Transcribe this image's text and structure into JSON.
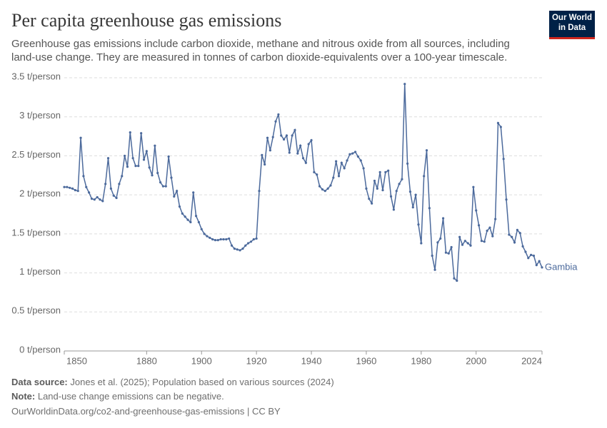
{
  "chart_data": {
    "type": "line",
    "title": "Per capita greenhouse gas emissions",
    "subtitle": "Greenhouse gas emissions include carbon dioxide, methane and nitrous oxide from all sources, including land-use change. They are measured in tonnes of carbon dioxide-equivalents over a 100-year timescale.",
    "logo": "Our World in Data",
    "x": [
      1850,
      1851,
      1852,
      1853,
      1854,
      1855,
      1856,
      1857,
      1858,
      1859,
      1860,
      1861,
      1862,
      1863,
      1864,
      1865,
      1866,
      1867,
      1868,
      1869,
      1870,
      1871,
      1872,
      1873,
      1874,
      1875,
      1876,
      1877,
      1878,
      1879,
      1880,
      1881,
      1882,
      1883,
      1884,
      1885,
      1886,
      1887,
      1888,
      1889,
      1890,
      1891,
      1892,
      1893,
      1894,
      1895,
      1896,
      1897,
      1898,
      1899,
      1900,
      1901,
      1902,
      1903,
      1904,
      1905,
      1906,
      1907,
      1908,
      1909,
      1910,
      1911,
      1912,
      1913,
      1914,
      1915,
      1916,
      1917,
      1918,
      1919,
      1920,
      1921,
      1922,
      1923,
      1924,
      1925,
      1926,
      1927,
      1928,
      1929,
      1930,
      1931,
      1932,
      1933,
      1934,
      1935,
      1936,
      1937,
      1938,
      1939,
      1940,
      1941,
      1942,
      1943,
      1944,
      1945,
      1946,
      1947,
      1948,
      1949,
      1950,
      1951,
      1952,
      1953,
      1954,
      1955,
      1956,
      1957,
      1958,
      1959,
      1960,
      1961,
      1962,
      1963,
      1964,
      1965,
      1966,
      1967,
      1968,
      1969,
      1970,
      1971,
      1972,
      1973,
      1974,
      1975,
      1976,
      1977,
      1978,
      1979,
      1980,
      1981,
      1982,
      1983,
      1984,
      1985,
      1986,
      1987,
      1988,
      1989,
      1990,
      1991,
      1992,
      1993,
      1994,
      1995,
      1996,
      1997,
      1998,
      1999,
      2000,
      2001,
      2002,
      2003,
      2004,
      2005,
      2006,
      2007,
      2008,
      2009,
      2010,
      2011,
      2012,
      2013,
      2014,
      2015,
      2016,
      2017,
      2018,
      2019,
      2020,
      2021,
      2022,
      2023,
      2024
    ],
    "series": [
      {
        "name": "Gambia",
        "color": "#4c6a9c",
        "values": [
          2.1,
          2.1,
          2.09,
          2.08,
          2.06,
          2.05,
          2.73,
          2.24,
          2.1,
          2.03,
          1.95,
          1.94,
          1.97,
          1.94,
          1.92,
          2.14,
          2.47,
          2.08,
          1.99,
          1.96,
          2.14,
          2.24,
          2.5,
          2.36,
          2.8,
          2.47,
          2.37,
          2.37,
          2.79,
          2.45,
          2.56,
          2.35,
          2.25,
          2.63,
          2.28,
          2.16,
          2.11,
          2.11,
          2.49,
          2.22,
          1.98,
          2.05,
          1.85,
          1.76,
          1.72,
          1.68,
          1.65,
          2.03,
          1.73,
          1.65,
          1.56,
          1.5,
          1.47,
          1.45,
          1.43,
          1.42,
          1.42,
          1.43,
          1.43,
          1.43,
          1.44,
          1.35,
          1.31,
          1.3,
          1.29,
          1.31,
          1.35,
          1.38,
          1.4,
          1.43,
          1.44,
          2.05,
          2.51,
          2.39,
          2.73,
          2.57,
          2.74,
          2.94,
          3.03,
          2.76,
          2.71,
          2.76,
          2.54,
          2.76,
          2.83,
          2.53,
          2.63,
          2.47,
          2.41,
          2.65,
          2.7,
          2.29,
          2.26,
          2.11,
          2.07,
          2.05,
          2.08,
          2.12,
          2.22,
          2.43,
          2.24,
          2.41,
          2.34,
          2.44,
          2.52,
          2.53,
          2.55,
          2.49,
          2.44,
          2.34,
          2.08,
          1.95,
          1.89,
          2.18,
          2.08,
          2.29,
          2.06,
          2.29,
          2.31,
          1.98,
          1.81,
          2.05,
          2.14,
          2.2,
          3.42,
          2.4,
          2.04,
          1.84,
          2.0,
          1.62,
          1.38,
          2.24,
          2.57,
          1.83,
          1.22,
          1.04,
          1.39,
          1.44,
          1.7,
          1.26,
          1.25,
          1.33,
          0.93,
          0.9,
          1.46,
          1.36,
          1.41,
          1.38,
          1.35,
          2.1,
          1.8,
          1.61,
          1.41,
          1.4,
          1.54,
          1.58,
          1.47,
          1.69,
          2.92,
          2.87,
          2.46,
          1.94,
          1.49,
          1.46,
          1.39,
          1.55,
          1.51,
          1.34,
          1.27,
          1.19,
          1.23,
          1.22,
          1.1,
          1.15,
          1.07
        ]
      }
    ],
    "xlim": [
      1850,
      2024
    ],
    "xticks": [
      1850,
      1880,
      1900,
      1920,
      1940,
      1960,
      1980,
      2000,
      2024
    ],
    "ylim": [
      0,
      3.5
    ],
    "yticks": [
      {
        "value": 0,
        "label": "0 t/person"
      },
      {
        "value": 0.5,
        "label": "0.5 t/person"
      },
      {
        "value": 1,
        "label": "1 t/person"
      },
      {
        "value": 1.5,
        "label": "1.5 t/person"
      },
      {
        "value": 2,
        "label": "2 t/person"
      },
      {
        "value": 2.5,
        "label": "2.5 t/person"
      },
      {
        "value": 3,
        "label": "3 t/person"
      },
      {
        "value": 3.5,
        "label": "3.5 t/person"
      }
    ],
    "grid": true,
    "footer": {
      "source_label": "Data source:",
      "source": "Jones et al. (2025); Population based on various sources (2024)",
      "note_label": "Note:",
      "note": "Land-use change emissions can be negative.",
      "url": "OurWorldinData.org/co2-and-greenhouse-gas-emissions | CC BY"
    }
  }
}
